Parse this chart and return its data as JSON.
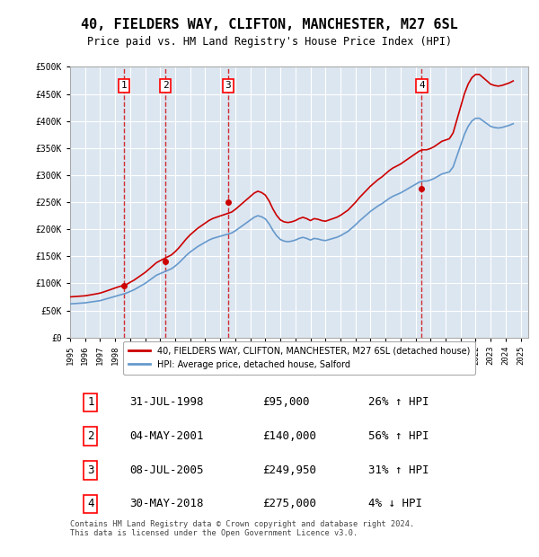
{
  "title": "40, FIELDERS WAY, CLIFTON, MANCHESTER, M27 6SL",
  "subtitle": "Price paid vs. HM Land Registry's House Price Index (HPI)",
  "ylabel": "",
  "background_color": "#ffffff",
  "plot_bg_color": "#dce6f1",
  "grid_color": "#ffffff",
  "ylim": [
    0,
    500000
  ],
  "yticks": [
    0,
    50000,
    100000,
    150000,
    200000,
    250000,
    300000,
    350000,
    400000,
    450000,
    500000
  ],
  "ytick_labels": [
    "£0",
    "£50K",
    "£100K",
    "£150K",
    "£200K",
    "£250K",
    "£300K",
    "£350K",
    "£400K",
    "£450K",
    "£500K"
  ],
  "xlim_start": 1995.0,
  "xlim_end": 2025.5,
  "xticks": [
    1995,
    1996,
    1997,
    1998,
    1999,
    2000,
    2001,
    2002,
    2003,
    2004,
    2005,
    2006,
    2007,
    2008,
    2009,
    2010,
    2011,
    2012,
    2013,
    2014,
    2015,
    2016,
    2017,
    2018,
    2019,
    2020,
    2021,
    2022,
    2023,
    2024,
    2025
  ],
  "sale_dates": [
    1998.58,
    2001.34,
    2005.52,
    2018.41
  ],
  "sale_prices": [
    95000,
    140000,
    249950,
    275000
  ],
  "sale_labels": [
    "1",
    "2",
    "3",
    "4"
  ],
  "property_line_color": "#cc0000",
  "hpi_line_color": "#6699cc",
  "legend_property": "40, FIELDERS WAY, CLIFTON, MANCHESTER, M27 6SL (detached house)",
  "legend_hpi": "HPI: Average price, detached house, Salford",
  "table_rows": [
    [
      "1",
      "31-JUL-1998",
      "£95,000",
      "26% ↑ HPI"
    ],
    [
      "2",
      "04-MAY-2001",
      "£140,000",
      "56% ↑ HPI"
    ],
    [
      "3",
      "08-JUL-2005",
      "£249,950",
      "31% ↑ HPI"
    ],
    [
      "4",
      "30-MAY-2018",
      "£275,000",
      "4% ↓ HPI"
    ]
  ],
  "footnote": "Contains HM Land Registry data © Crown copyright and database right 2024.\nThis data is licensed under the Open Government Licence v3.0.",
  "hpi_data_x": [
    1995.0,
    1995.25,
    1995.5,
    1995.75,
    1996.0,
    1996.25,
    1996.5,
    1996.75,
    1997.0,
    1997.25,
    1997.5,
    1997.75,
    1998.0,
    1998.25,
    1998.5,
    1998.75,
    1999.0,
    1999.25,
    1999.5,
    1999.75,
    2000.0,
    2000.25,
    2000.5,
    2000.75,
    2001.0,
    2001.25,
    2001.5,
    2001.75,
    2002.0,
    2002.25,
    2002.5,
    2002.75,
    2003.0,
    2003.25,
    2003.5,
    2003.75,
    2004.0,
    2004.25,
    2004.5,
    2004.75,
    2005.0,
    2005.25,
    2005.5,
    2005.75,
    2006.0,
    2006.25,
    2006.5,
    2006.75,
    2007.0,
    2007.25,
    2007.5,
    2007.75,
    2008.0,
    2008.25,
    2008.5,
    2008.75,
    2009.0,
    2009.25,
    2009.5,
    2009.75,
    2010.0,
    2010.25,
    2010.5,
    2010.75,
    2011.0,
    2011.25,
    2011.5,
    2011.75,
    2012.0,
    2012.25,
    2012.5,
    2012.75,
    2013.0,
    2013.25,
    2013.5,
    2013.75,
    2014.0,
    2014.25,
    2014.5,
    2014.75,
    2015.0,
    2015.25,
    2015.5,
    2015.75,
    2016.0,
    2016.25,
    2016.5,
    2016.75,
    2017.0,
    2017.25,
    2017.5,
    2017.75,
    2018.0,
    2018.25,
    2018.5,
    2018.75,
    2019.0,
    2019.25,
    2019.5,
    2019.75,
    2020.0,
    2020.25,
    2020.5,
    2020.75,
    2021.0,
    2021.25,
    2021.5,
    2021.75,
    2022.0,
    2022.25,
    2022.5,
    2022.75,
    2023.0,
    2023.25,
    2023.5,
    2023.75,
    2024.0,
    2024.25,
    2024.5
  ],
  "hpi_data_y": [
    62000,
    62500,
    63000,
    63500,
    64000,
    65000,
    66000,
    67000,
    68000,
    70000,
    72000,
    74000,
    76000,
    78000,
    80000,
    82000,
    85000,
    88000,
    92000,
    96000,
    100000,
    105000,
    110000,
    115000,
    118000,
    121000,
    124000,
    127000,
    132000,
    138000,
    145000,
    152000,
    158000,
    163000,
    168000,
    172000,
    176000,
    180000,
    183000,
    185000,
    187000,
    189000,
    191000,
    193000,
    197000,
    202000,
    207000,
    212000,
    217000,
    222000,
    225000,
    223000,
    219000,
    210000,
    198000,
    188000,
    181000,
    178000,
    177000,
    178000,
    180000,
    183000,
    185000,
    183000,
    180000,
    183000,
    182000,
    180000,
    179000,
    181000,
    183000,
    185000,
    188000,
    192000,
    196000,
    202000,
    208000,
    215000,
    221000,
    227000,
    233000,
    238000,
    243000,
    247000,
    252000,
    257000,
    261000,
    264000,
    267000,
    271000,
    275000,
    279000,
    283000,
    287000,
    289000,
    289000,
    291000,
    294000,
    298000,
    302000,
    304000,
    306000,
    315000,
    335000,
    355000,
    375000,
    390000,
    400000,
    405000,
    405000,
    400000,
    395000,
    390000,
    388000,
    387000,
    388000,
    390000,
    392000,
    395000
  ],
  "property_hpi_x": [
    1995.0,
    1995.25,
    1995.5,
    1995.75,
    1996.0,
    1996.25,
    1996.5,
    1996.75,
    1997.0,
    1997.25,
    1997.5,
    1997.75,
    1998.0,
    1998.25,
    1998.5,
    1998.75,
    1999.0,
    1999.25,
    1999.5,
    1999.75,
    2000.0,
    2000.25,
    2000.5,
    2000.75,
    2001.0,
    2001.25,
    2001.5,
    2001.75,
    2002.0,
    2002.25,
    2002.5,
    2002.75,
    2003.0,
    2003.25,
    2003.5,
    2003.75,
    2004.0,
    2004.25,
    2004.5,
    2004.75,
    2005.0,
    2005.25,
    2005.5,
    2005.75,
    2006.0,
    2006.25,
    2006.5,
    2006.75,
    2007.0,
    2007.25,
    2007.5,
    2007.75,
    2008.0,
    2008.25,
    2008.5,
    2008.75,
    2009.0,
    2009.25,
    2009.5,
    2009.75,
    2010.0,
    2010.25,
    2010.5,
    2010.75,
    2011.0,
    2011.25,
    2011.5,
    2011.75,
    2012.0,
    2012.25,
    2012.5,
    2012.75,
    2013.0,
    2013.25,
    2013.5,
    2013.75,
    2014.0,
    2014.25,
    2014.5,
    2014.75,
    2015.0,
    2015.25,
    2015.5,
    2015.75,
    2016.0,
    2016.25,
    2016.5,
    2016.75,
    2017.0,
    2017.25,
    2017.5,
    2017.75,
    2018.0,
    2018.25,
    2018.5,
    2018.75,
    2019.0,
    2019.25,
    2019.5,
    2019.75,
    2020.0,
    2020.25,
    2020.5,
    2020.75,
    2021.0,
    2021.25,
    2021.5,
    2021.75,
    2022.0,
    2022.25,
    2022.5,
    2022.75,
    2023.0,
    2023.25,
    2023.5,
    2023.75,
    2024.0,
    2024.25,
    2024.5
  ],
  "property_hpi_y": [
    75000,
    75500,
    76000,
    76500,
    77000,
    78200,
    79400,
    80600,
    82000,
    84200,
    86600,
    89000,
    91500,
    93800,
    95800,
    97800,
    102000,
    105800,
    110600,
    115400,
    120200,
    126200,
    132200,
    138200,
    141900,
    145400,
    149000,
    152600,
    158600,
    165800,
    174200,
    182600,
    189800,
    195800,
    201800,
    206600,
    211400,
    216200,
    219800,
    222200,
    224600,
    226900,
    229300,
    231600,
    236600,
    242600,
    248600,
    254600,
    260600,
    266600,
    270200,
    267800,
    263000,
    252200,
    237600,
    225600,
    217200,
    213600,
    212400,
    213600,
    216000,
    219600,
    222000,
    219600,
    216000,
    219600,
    218400,
    216000,
    214800,
    217200,
    219600,
    222000,
    225600,
    230400,
    235200,
    242400,
    249600,
    258000,
    265200,
    272400,
    279600,
    285600,
    291600,
    296400,
    302400,
    308400,
    313200,
    316800,
    320400,
    325200,
    330000,
    334800,
    339600,
    344400,
    346800,
    346800,
    349200,
    352800,
    357600,
    362400,
    364800,
    367200,
    378000,
    402000,
    426000,
    450000,
    468000,
    480000,
    486000,
    486000,
    480000,
    474000,
    468000,
    465600,
    464400,
    465600,
    468000,
    470400,
    474000
  ]
}
